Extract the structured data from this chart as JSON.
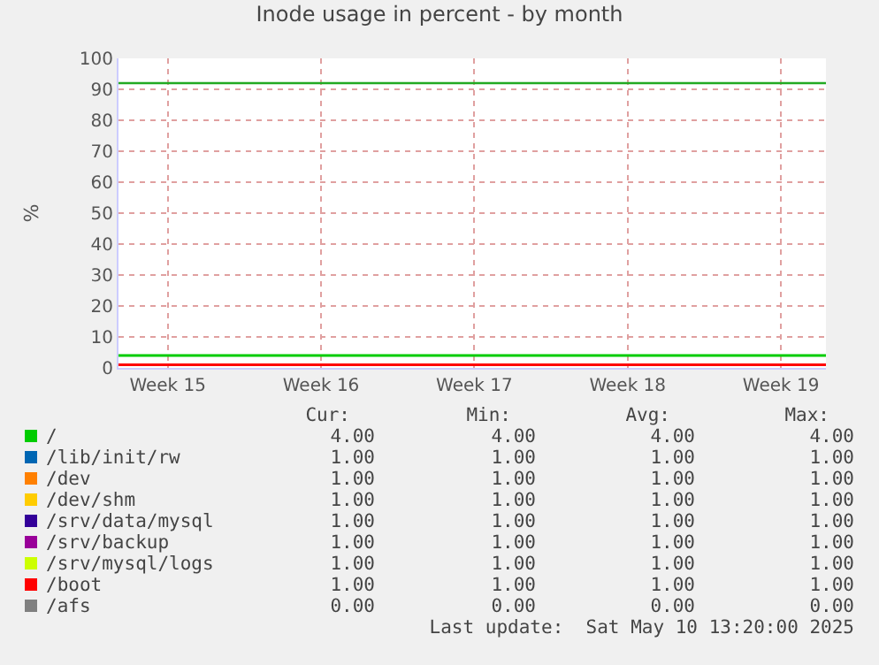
{
  "chart_data": [
    {
      "type": "line",
      "title": "Inode usage in percent - by month",
      "ylabel": "%",
      "x": [
        "2025-04-08T06:00",
        "2025-05-10T13:20"
      ],
      "xlim": [
        "2025-04-08T06:00",
        "2025-05-10T13:20"
      ],
      "xticks": [
        {
          "value": "2025-04-10T12:00",
          "label": "Week 15"
        },
        {
          "value": "2025-04-17T12:00",
          "label": "Week 16"
        },
        {
          "value": "2025-04-24T12:00",
          "label": "Week 17"
        },
        {
          "value": "2025-05-01T12:00",
          "label": "Week 18"
        },
        {
          "value": "2025-05-08T12:00",
          "label": "Week 19"
        }
      ],
      "ylim": [
        0,
        100
      ],
      "yticks": [
        0,
        10,
        20,
        30,
        40,
        50,
        60,
        70,
        80,
        90,
        100
      ],
      "grid": true,
      "legend": "bottom",
      "marker": "none",
      "line_style": "solid",
      "series": [
        {
          "name": "/",
          "color": "#00cc00",
          "values": [
            4,
            4
          ]
        },
        {
          "name": "/lib/init/rw",
          "color": "#0066b3",
          "values": [
            null,
            null
          ]
        },
        {
          "name": "/dev",
          "color": "#ff8000",
          "values": [
            null,
            null
          ]
        },
        {
          "name": "/dev/shm",
          "color": "#ffcc00",
          "values": [
            null,
            null
          ]
        },
        {
          "name": "/srv/data/mysql",
          "color": "#330099",
          "values": [
            null,
            null
          ]
        },
        {
          "name": "/srv/backup",
          "color": "#990099",
          "values": [
            null,
            null
          ]
        },
        {
          "name": "/srv/mysql/logs",
          "color": "#ccff00",
          "values": [
            null,
            null
          ]
        },
        {
          "name": "/boot",
          "color": "#ff0000",
          "values": [
            1,
            1
          ]
        },
        {
          "name": "/afs",
          "color": "#808080",
          "values": [
            null,
            null
          ]
        }
      ],
      "ref_lines": [
        {
          "axis": "y",
          "value": 92,
          "color": "#22aa22"
        }
      ],
      "annotations": [
        "Last update:  Sat May 10 13:20:00 2025"
      ]
    },
    {
      "type": "other",
      "annotations": [
        "Cur:",
        "Min:",
        "Avg:",
        "Max:",
        "4.00",
        "4.00",
        "4.00",
        "4.00",
        "1.00",
        "1.00",
        "1.00",
        "1.00",
        "1.00",
        "1.00",
        "1.00",
        "1.00",
        "1.00",
        "1.00",
        "1.00",
        "1.00",
        "1.00",
        "1.00",
        "1.00",
        "1.00",
        "1.00",
        "1.00",
        "1.00",
        "1.00",
        "1.00",
        "1.00",
        "1.00",
        "1.00",
        "1.00",
        "1.00",
        "1.00",
        "1.00",
        "0.00",
        "0.00",
        "0.00",
        "0.00"
      ]
    }
  ]
}
